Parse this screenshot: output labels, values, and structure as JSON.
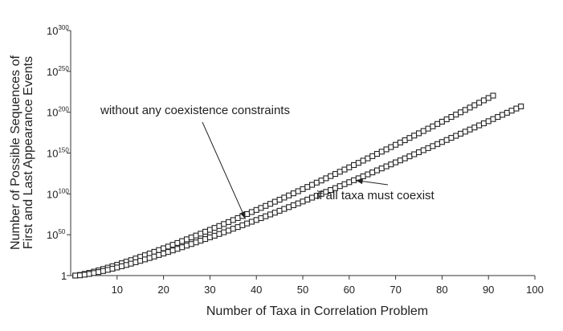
{
  "chart_data": {
    "type": "scatter",
    "xlabel": "Number of Taxa in Correlation Problem",
    "ylabel_line1": "Number of Possible Sequences of",
    "ylabel_line2": "First and Last Appearance Events",
    "xlim": [
      0,
      100
    ],
    "ylim_log10": [
      0,
      300
    ],
    "y_scale": "log10",
    "x_ticks": [
      10,
      20,
      30,
      40,
      50,
      60,
      70,
      80,
      90,
      100
    ],
    "y_ticks": [
      {
        "base": "1",
        "exp": ""
      },
      {
        "base": "10",
        "exp": "50"
      },
      {
        "base": "10",
        "exp": "100"
      },
      {
        "base": "10",
        "exp": "150"
      },
      {
        "base": "10",
        "exp": "200"
      },
      {
        "base": "10",
        "exp": "250"
      },
      {
        "base": "10",
        "exp": "300"
      }
    ],
    "series": [
      {
        "marker": "open-square",
        "annotation": "without any coexistence constraints",
        "x": [
          1,
          2,
          3,
          4,
          5,
          6,
          7,
          8,
          9,
          10,
          11,
          12,
          13,
          14,
          15,
          16,
          17,
          18,
          19,
          20,
          21,
          22,
          23,
          24,
          25,
          26,
          27,
          28,
          29,
          30,
          31,
          32,
          33,
          34,
          35,
          36,
          37,
          38,
          39,
          40,
          41,
          42,
          43,
          44,
          45,
          46,
          47,
          48,
          49,
          50,
          51,
          52,
          53,
          54,
          55,
          56,
          57,
          58,
          59,
          60,
          61,
          62,
          63,
          64,
          65,
          66,
          67,
          68,
          69,
          70,
          71,
          72,
          73,
          74,
          75,
          76,
          77,
          78,
          79,
          80,
          81,
          82,
          83,
          84,
          85,
          86,
          87,
          88,
          89,
          90,
          91
        ],
        "log10_y": [
          0,
          0.8,
          2.0,
          3.3,
          4.8,
          6.3,
          8.0,
          9.7,
          11.4,
          13.2,
          15.1,
          17.0,
          18.9,
          20.9,
          22.9,
          24.9,
          27.0,
          29.1,
          31.2,
          33.4,
          35.5,
          37.7,
          39.9,
          42.2,
          44.4,
          46.7,
          49.0,
          51.3,
          53.7,
          56.0,
          58.4,
          60.7,
          63.1,
          65.5,
          68.0,
          70.4,
          72.9,
          75.3,
          77.8,
          80.3,
          82.8,
          85.3,
          87.8,
          90.4,
          92.9,
          95.5,
          98.1,
          100.7,
          103.3,
          105.9,
          108.5,
          111.1,
          113.8,
          116.4,
          119.1,
          121.8,
          124.4,
          127.1,
          129.8,
          132.5,
          135.3,
          138.0,
          140.7,
          143.5,
          146.2,
          149.0,
          151.7,
          154.5,
          157.3,
          160.1,
          162.9,
          165.7,
          168.5,
          171.4,
          174.2,
          177.0,
          179.9,
          182.7,
          185.6,
          188.4,
          191.3,
          194.2,
          197.1,
          199.9,
          202.8,
          205.7,
          208.6,
          211.6,
          214.5,
          217.4,
          220.3
        ]
      },
      {
        "marker": "open-square",
        "annotation": "if all taxa must coexist",
        "x": [
          1,
          2,
          3,
          4,
          5,
          6,
          7,
          8,
          9,
          10,
          11,
          12,
          13,
          14,
          15,
          16,
          17,
          18,
          19,
          20,
          21,
          22,
          23,
          24,
          25,
          26,
          27,
          28,
          29,
          30,
          31,
          32,
          33,
          34,
          35,
          36,
          37,
          38,
          39,
          40,
          41,
          42,
          43,
          44,
          45,
          46,
          47,
          48,
          49,
          50,
          51,
          52,
          53,
          54,
          55,
          56,
          57,
          58,
          59,
          60,
          61,
          62,
          63,
          64,
          65,
          66,
          67,
          68,
          69,
          70,
          71,
          72,
          73,
          74,
          75,
          76,
          77,
          78,
          79,
          80,
          81,
          82,
          83,
          84,
          85,
          86,
          87,
          88,
          89,
          90,
          91,
          92,
          93,
          94,
          95,
          96,
          97
        ],
        "log10_y": [
          0,
          0.3,
          1.1,
          2.0,
          3.1,
          4.3,
          5.6,
          7.0,
          8.4,
          9.9,
          11.4,
          13.0,
          14.6,
          16.3,
          18.0,
          19.8,
          21.5,
          23.3,
          25.2,
          27.0,
          28.9,
          30.8,
          32.7,
          34.7,
          36.7,
          38.6,
          40.6,
          42.7,
          44.7,
          46.8,
          48.8,
          50.9,
          53.0,
          55.1,
          57.3,
          59.4,
          61.6,
          63.8,
          65.9,
          68.1,
          70.3,
          72.6,
          74.8,
          77.0,
          79.3,
          81.6,
          83.8,
          86.1,
          88.4,
          90.7,
          93.0,
          95.4,
          97.7,
          100.0,
          102.4,
          104.7,
          107.1,
          109.5,
          111.9,
          114.3,
          116.7,
          119.1,
          121.5,
          123.9,
          126.3,
          128.8,
          131.2,
          133.7,
          136.1,
          138.6,
          141.0,
          143.5,
          146.0,
          148.5,
          151.0,
          153.5,
          156.0,
          158.5,
          161.0,
          163.5,
          166.0,
          168.6,
          171.1,
          173.7,
          176.2,
          178.8,
          181.3,
          183.9,
          186.4,
          189.0,
          191.6,
          194.2,
          196.8,
          199.3,
          201.9,
          204.5,
          207.1
        ]
      }
    ],
    "annotations": [
      {
        "text": "without any coexistence constraints",
        "arrow_to_x": 38
      },
      {
        "text": "if all taxa must coexist",
        "arrow_to_x": 61
      }
    ]
  }
}
